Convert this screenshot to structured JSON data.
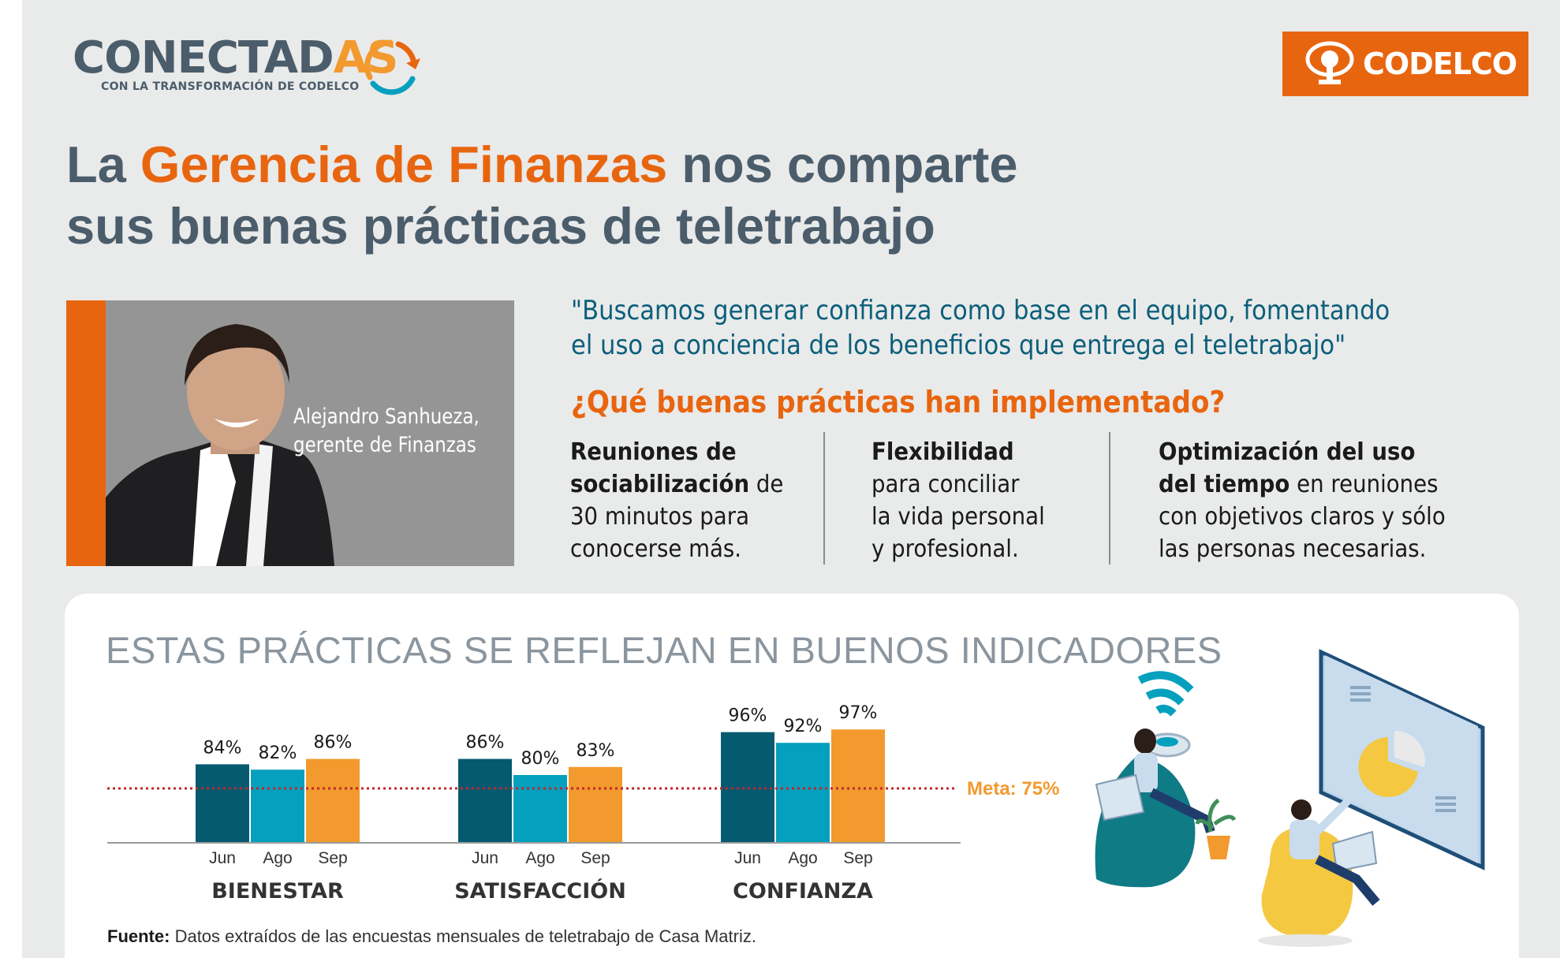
{
  "brand": {
    "program_part1": "CONECTAD",
    "program_part2": "AS",
    "program_tagline": "CON LA TRANSFORMACIÓN DE CODELCO",
    "company": "CODELCO",
    "accent": "#e8650f"
  },
  "headline": {
    "part1": "La ",
    "highlight": "Gerencia de Finanzas",
    "part2": " nos comparte",
    "line2": "sus buenas prácticas de teletrabajo"
  },
  "person": {
    "name": "Alejandro Sanhueza,",
    "role": "gerente de Finanzas"
  },
  "quote": {
    "line1": "\"Buscamos generar confianza como base en el equipo, fomentando",
    "line2": "el uso a conciencia de los beneficios que entrega el teletrabajo\""
  },
  "question": "¿Qué buenas prácticas han implementado?",
  "practices": [
    {
      "l1": "Reuniones de",
      "b2": "sociabilización",
      "l2": " de",
      "l3": "30 minutos para",
      "l4": "conocerse más."
    },
    {
      "b1": "Flexibilidad",
      "l2": "para conciliar",
      "l3": "la vida personal",
      "l4": "y profesional."
    },
    {
      "b1": "Optimización del uso",
      "b2": "del tiempo",
      "l2": " en reuniones",
      "l3": "con objetivos claros y sólo",
      "l4": "las personas necesarias."
    }
  ],
  "indicators_title": "ESTAS PRÁCTICAS SE REFLEJAN EN BUENOS INDICADORES",
  "source_label": "Fuente:",
  "source_text": " Datos extraídos de las encuestas mensuales de teletrabajo de Casa Matriz.",
  "chart_data": {
    "type": "bar",
    "title": "ESTAS PRÁCTICAS SE REFLEJAN EN BUENOS INDICADORES",
    "groups": [
      "BIENESTAR",
      "SATISFACCIÓN",
      "CONFIANZA"
    ],
    "categories": [
      "Jun",
      "Ago",
      "Sep"
    ],
    "series": [
      {
        "group": "BIENESTAR",
        "values": [
          84,
          82,
          86
        ],
        "labels": [
          "84%",
          "82%",
          "86%"
        ]
      },
      {
        "group": "SATISFACCIÓN",
        "values": [
          86,
          80,
          83
        ],
        "labels": [
          "86%",
          "80%",
          "83%"
        ]
      },
      {
        "group": "CONFIANZA",
        "values": [
          96,
          92,
          97
        ],
        "labels": [
          "96%",
          "92%",
          "97%"
        ]
      }
    ],
    "month_colors": [
      "#055a70",
      "#05a0be",
      "#f29a2e"
    ],
    "target": {
      "value": 75,
      "label": "Meta: 75%",
      "color": "#c1272d",
      "label_color": "#f29a2e"
    },
    "unit": "%",
    "grid": false
  }
}
